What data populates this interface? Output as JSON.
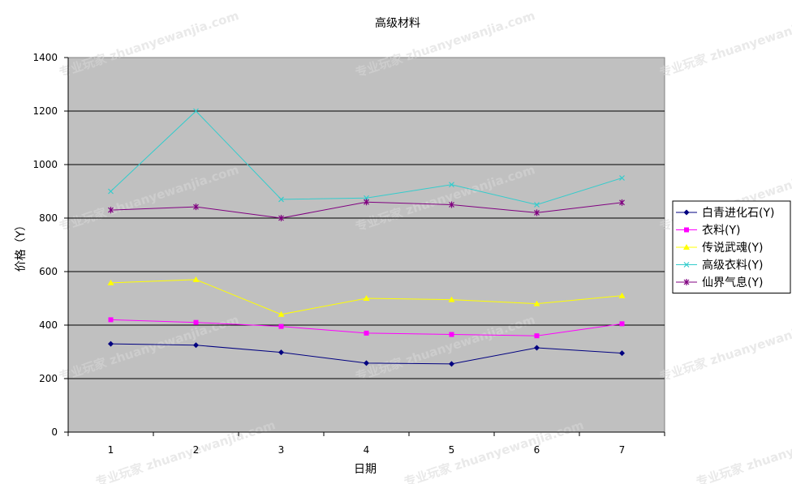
{
  "chart_data": {
    "type": "line",
    "title": "高级材料",
    "xlabel": "日期",
    "ylabel": "价格（Y）",
    "x": [
      1,
      2,
      3,
      4,
      5,
      6,
      7
    ],
    "ylim": [
      0,
      1400
    ],
    "yticks": [
      0,
      200,
      400,
      600,
      800,
      1000,
      1200,
      1400
    ],
    "grid": true,
    "legend_position": "right",
    "plot_background": "#c0c0c0",
    "series": [
      {
        "name": "白青进化石(Y)",
        "color": "#000080",
        "marker": "diamond",
        "values": [
          330,
          325,
          298,
          258,
          255,
          315,
          295
        ]
      },
      {
        "name": "衣料(Y)",
        "color": "#ff00ff",
        "marker": "square",
        "values": [
          420,
          410,
          395,
          370,
          365,
          360,
          405
        ]
      },
      {
        "name": "传说武魂(Y)",
        "color": "#ffff00",
        "marker": "triangle",
        "values": [
          558,
          570,
          440,
          500,
          495,
          480,
          510
        ]
      },
      {
        "name": "高级衣料(Y)",
        "color": "#33cccc",
        "marker": "x",
        "values": [
          900,
          1200,
          870,
          875,
          925,
          850,
          950
        ]
      },
      {
        "name": "仙界气息(Y)",
        "color": "#800080",
        "marker": "asterisk",
        "values": [
          830,
          842,
          800,
          860,
          850,
          820,
          858
        ]
      }
    ]
  },
  "watermark_text": "专业玩家 zhuanyewanjia.com"
}
